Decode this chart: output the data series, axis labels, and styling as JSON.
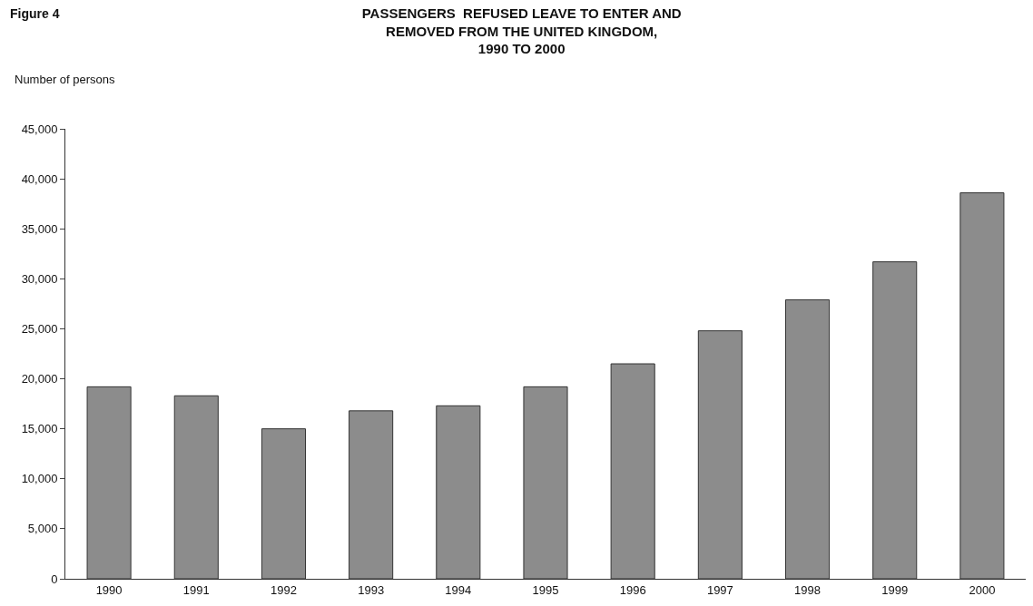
{
  "chart_data": {
    "type": "bar",
    "title": "PASSENGERS  REFUSED LEAVE TO ENTER AND\nREMOVED FROM THE UNITED KINGDOM,\n1990 TO 2000",
    "ylabel": "Number of persons",
    "annotations": [
      "Figure 4"
    ],
    "categories": [
      "1990",
      "1991",
      "1992",
      "1993",
      "1994",
      "1995",
      "1996",
      "1997",
      "1998",
      "1999",
      "2000"
    ],
    "values": [
      19200,
      18300,
      15000,
      16800,
      17300,
      19200,
      21500,
      24800,
      27900,
      31700,
      38600
    ],
    "color": "#8c8c8c",
    "ylim": [
      0,
      45000
    ],
    "yticks": [
      {
        "value": 0,
        "label": "0"
      },
      {
        "value": 5000,
        "label": "5,000"
      },
      {
        "value": 10000,
        "label": "10,000"
      },
      {
        "value": 15000,
        "label": "15,000"
      },
      {
        "value": 20000,
        "label": "20,000"
      },
      {
        "value": 25000,
        "label": "25,000"
      },
      {
        "value": 30000,
        "label": "30,000"
      },
      {
        "value": 35000,
        "label": "35,000"
      },
      {
        "value": 40000,
        "label": "40,000"
      },
      {
        "value": 45000,
        "label": "45,000"
      }
    ]
  }
}
